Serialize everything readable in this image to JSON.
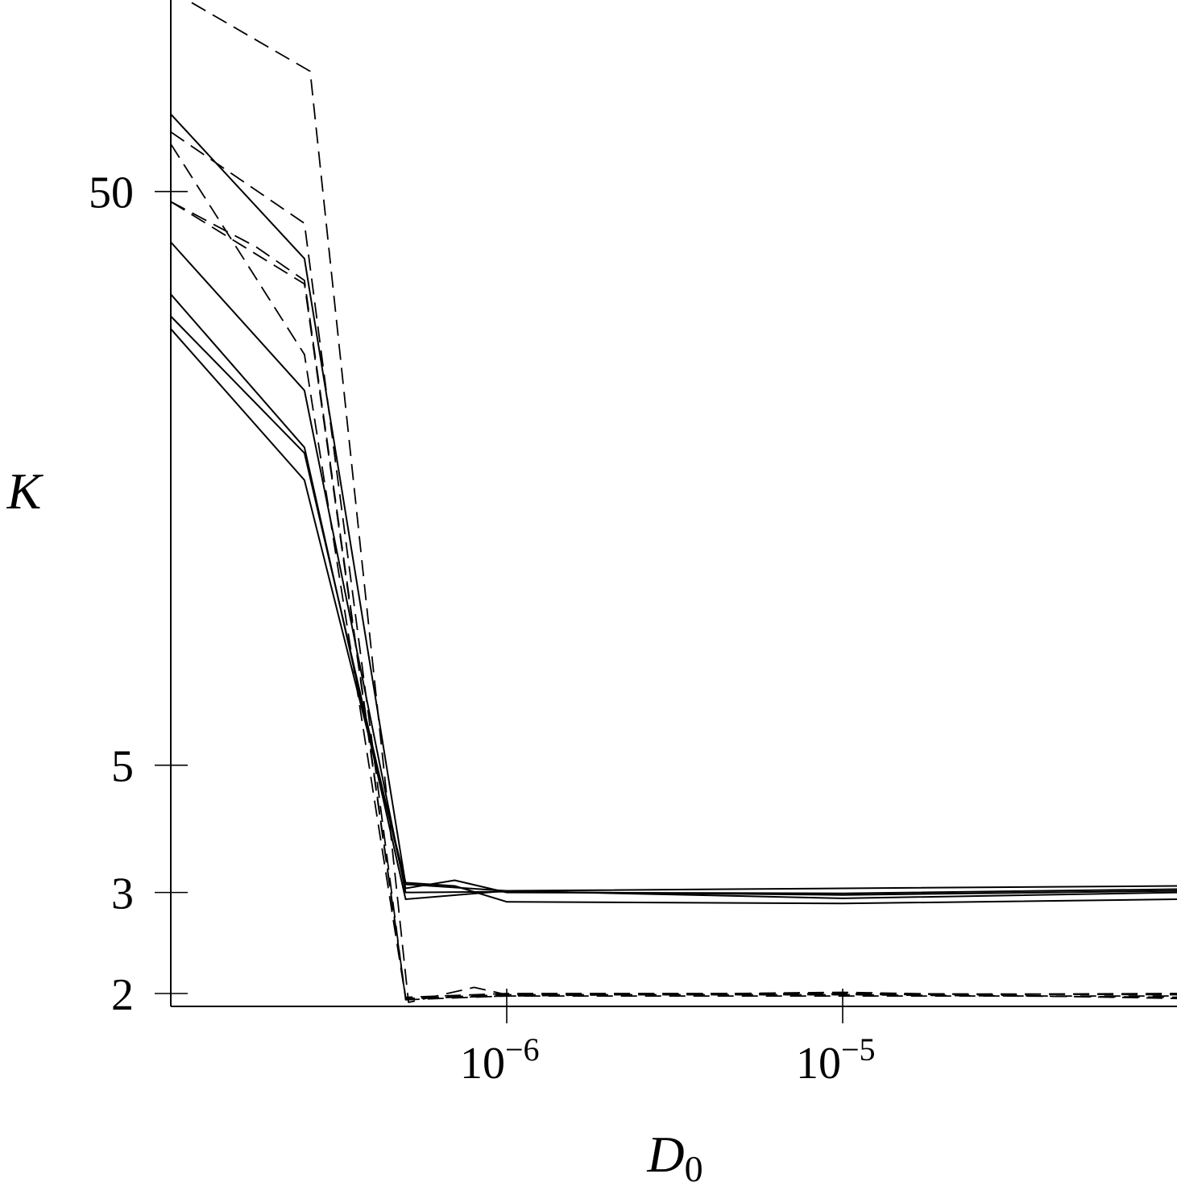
{
  "chart_data": {
    "type": "line",
    "xlabel": "D",
    "xlabel_subscript": "0",
    "ylabel": "K",
    "x_scale": "log",
    "y_scale": "log",
    "xlim": [
      1e-07,
      0.0001
    ],
    "ylim": [
      1.9,
      120
    ],
    "x_ticks": [
      {
        "value": 1e-06,
        "base": "10",
        "exp": "−6"
      },
      {
        "value": 1e-05,
        "base": "10",
        "exp": "−5"
      }
    ],
    "y_ticks": [
      {
        "value": 2,
        "label": "2"
      },
      {
        "value": 3,
        "label": "3"
      },
      {
        "value": 5,
        "label": "5"
      },
      {
        "value": 50,
        "label": "50"
      }
    ],
    "grid": false,
    "legend": "none",
    "series": [
      {
        "style": "solid",
        "points": [
          [
            1e-07,
            68.2
          ],
          [
            2.5e-07,
            38.2
          ],
          [
            5e-07,
            3.1
          ],
          [
            1e-06,
            3.02
          ],
          [
            1e-05,
            3.05
          ],
          [
            0.0001,
            3.08
          ]
        ]
      },
      {
        "style": "solid",
        "points": [
          [
            1e-07,
            40.8
          ],
          [
            2.5e-07,
            22.5
          ],
          [
            5e-07,
            3.0
          ],
          [
            1e-06,
            3.01
          ],
          [
            1e-05,
            2.97
          ],
          [
            0.0001,
            3.02
          ]
        ]
      },
      {
        "style": "solid",
        "points": [
          [
            1e-07,
            33.1
          ],
          [
            2.5e-07,
            17.9
          ],
          [
            5e-07,
            2.92
          ],
          [
            1e-06,
            3.02
          ],
          [
            1e-05,
            2.93
          ],
          [
            0.0001,
            3.0
          ]
        ]
      },
      {
        "style": "solid",
        "points": [
          [
            1e-07,
            30.3
          ],
          [
            2.5e-07,
            17.5
          ],
          [
            5e-07,
            3.05
          ],
          [
            7e-07,
            3.15
          ],
          [
            1e-06,
            3.0
          ],
          [
            1e-05,
            2.99
          ],
          [
            0.0001,
            3.04
          ]
        ]
      },
      {
        "style": "solid",
        "points": [
          [
            1e-07,
            28.8
          ],
          [
            2.5e-07,
            15.7
          ],
          [
            5e-07,
            3.12
          ],
          [
            7e-07,
            3.08
          ],
          [
            1e-06,
            2.89
          ],
          [
            1e-05,
            2.87
          ],
          [
            0.0001,
            2.92
          ]
        ]
      },
      {
        "style": "dashed",
        "points": [
          [
            1e-07,
            112
          ],
          [
            2.6e-07,
            81
          ],
          [
            5.1e-07,
            1.93
          ],
          [
            8e-07,
            2.05
          ],
          [
            1e-06,
            1.99
          ],
          [
            1e-05,
            1.99
          ],
          [
            0.0001,
            2.0
          ]
        ]
      },
      {
        "style": "dashed",
        "points": [
          [
            1e-07,
            63.5
          ],
          [
            2.5e-07,
            44.0
          ],
          [
            5e-07,
            1.95
          ],
          [
            1e-06,
            1.98
          ],
          [
            1e-05,
            1.98
          ],
          [
            0.0001,
            1.98
          ]
        ]
      },
      {
        "style": "dashed",
        "points": [
          [
            1e-07,
            60.5
          ],
          [
            2.5e-07,
            26.0
          ],
          [
            5e-07,
            1.96
          ],
          [
            1e-06,
            1.99
          ],
          [
            1e-05,
            1.99
          ],
          [
            0.0001,
            1.97
          ]
        ]
      },
      {
        "style": "dashed",
        "points": [
          [
            1e-07,
            48.0
          ],
          [
            1.8e-07,
            40.0
          ],
          [
            2.5e-07,
            35.0
          ],
          [
            5e-07,
            1.97
          ],
          [
            1e-06,
            2.0
          ],
          [
            1e-05,
            2.0
          ],
          [
            0.0001,
            1.99
          ]
        ]
      },
      {
        "style": "dashed",
        "points": [
          [
            1e-07,
            48.0
          ],
          [
            2.5e-07,
            34.5
          ],
          [
            5e-07,
            1.96
          ],
          [
            1e-06,
            1.98
          ],
          [
            1e-05,
            2.01
          ],
          [
            0.0001,
            1.96
          ]
        ]
      }
    ]
  }
}
